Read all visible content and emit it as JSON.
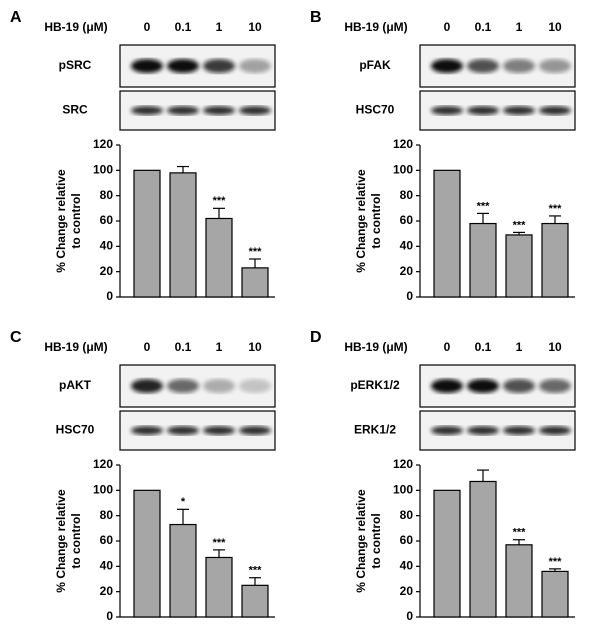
{
  "chart_data": [
    {
      "type": "bar",
      "panel_label": "A",
      "dose_label": "HB-19 (μM)",
      "categories": [
        "0",
        "0.1",
        "1",
        "10"
      ],
      "blots": [
        "pSRC",
        "SRC"
      ],
      "ylabel": [
        "% Change relative",
        "to control"
      ],
      "values": [
        100,
        98,
        62,
        23
      ],
      "errors": [
        null,
        5,
        8,
        7
      ],
      "significance": [
        null,
        null,
        "***",
        "***"
      ],
      "color": "#a6a6a6",
      "ylim": [
        0,
        120
      ],
      "yticks": [
        0,
        20,
        40,
        60,
        80,
        100,
        120
      ]
    },
    {
      "type": "bar",
      "panel_label": "B",
      "dose_label": "HB-19 (μM)",
      "categories": [
        "0",
        "0.1",
        "1",
        "10"
      ],
      "blots": [
        "pFAK",
        "HSC70"
      ],
      "ylabel": [
        "% Change relative",
        "to control"
      ],
      "values": [
        100,
        58,
        49,
        58
      ],
      "errors": [
        null,
        8,
        2,
        6
      ],
      "significance": [
        null,
        "***",
        "***",
        "***"
      ],
      "color": "#a6a6a6",
      "ylim": [
        0,
        120
      ],
      "yticks": [
        0,
        20,
        40,
        60,
        80,
        100,
        120
      ]
    },
    {
      "type": "bar",
      "panel_label": "C",
      "dose_label": "HB-19 (μM)",
      "categories": [
        "0",
        "0.1",
        "1",
        "10"
      ],
      "blots": [
        "pAKT",
        "HSC70"
      ],
      "ylabel": [
        "% Change relative",
        "to control"
      ],
      "values": [
        100,
        73,
        47,
        25
      ],
      "errors": [
        null,
        12,
        6,
        6
      ],
      "significance": [
        null,
        "*",
        "***",
        "***"
      ],
      "color": "#a6a6a6",
      "ylim": [
        0,
        120
      ],
      "yticks": [
        0,
        20,
        40,
        60,
        80,
        100,
        120
      ]
    },
    {
      "type": "bar",
      "panel_label": "D",
      "dose_label": "HB-19 (μM)",
      "categories": [
        "0",
        "0.1",
        "1",
        "10"
      ],
      "blots": [
        "pERK1/2",
        "ERK1/2"
      ],
      "ylabel": [
        "% Change relative",
        "to control"
      ],
      "values": [
        100,
        107,
        57,
        36
      ],
      "errors": [
        null,
        9,
        4,
        2
      ],
      "significance": [
        null,
        null,
        "***",
        "***"
      ],
      "color": "#a6a6a6",
      "ylim": [
        0,
        120
      ],
      "yticks": [
        0,
        20,
        40,
        60,
        80,
        100,
        120
      ]
    }
  ]
}
